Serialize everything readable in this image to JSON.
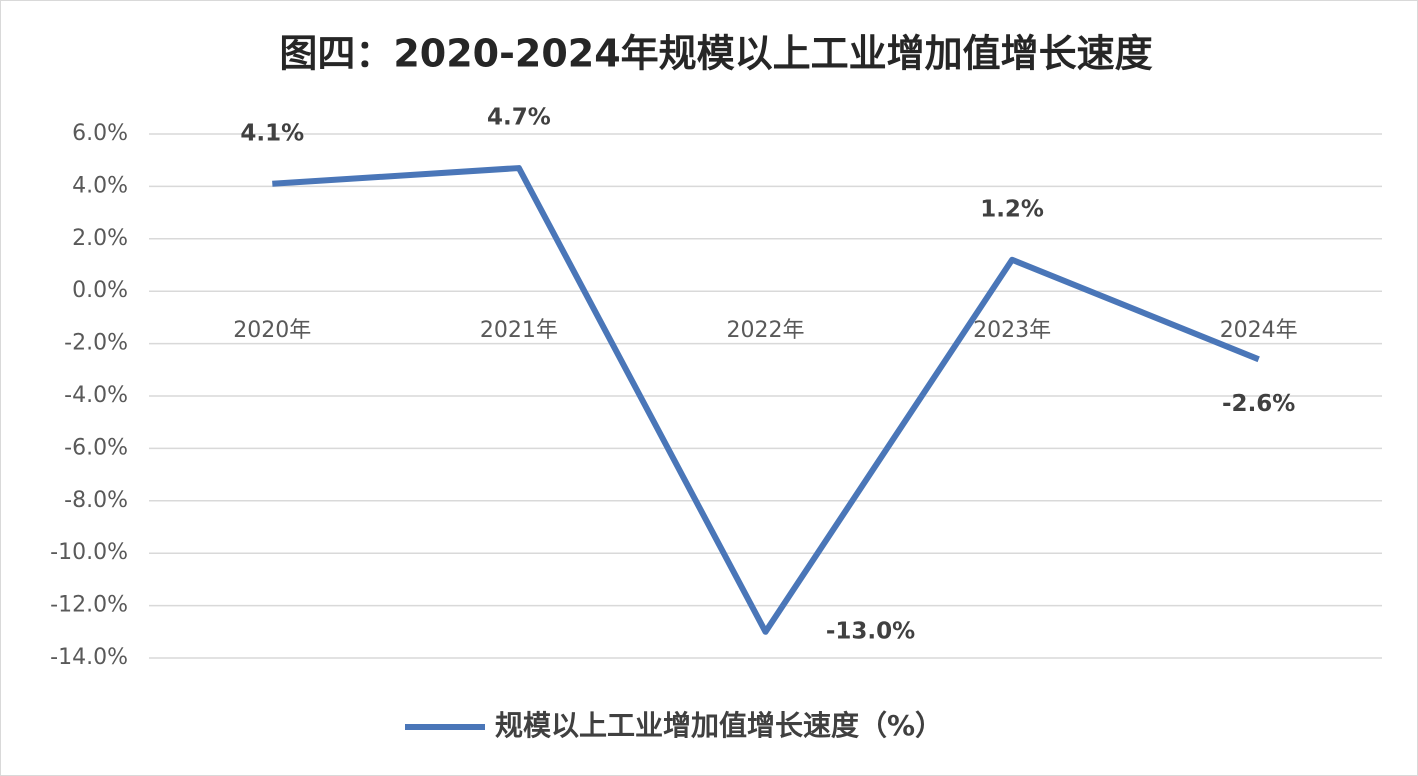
{
  "chart_data": {
    "type": "line",
    "title": "图四：2020-2024年规模以上工业增加值增长速度",
    "categories": [
      "2020年",
      "2021年",
      "2022年",
      "2023年",
      "2024年"
    ],
    "series": [
      {
        "name": "规模以上工业增加值增长速度（%）",
        "color": "#4a76b8",
        "values": [
          4.1,
          4.7,
          -13.0,
          1.2,
          -2.6
        ],
        "value_labels": [
          "4.1%",
          "4.7%",
          "-13.0%",
          "1.2%",
          "-2.6%"
        ]
      }
    ],
    "ylim": [
      -14,
      6
    ],
    "yticks": [
      {
        "value": -14,
        "label": "-14.0%"
      },
      {
        "value": -12,
        "label": "-12.0%"
      },
      {
        "value": -10,
        "label": "-10.0%"
      },
      {
        "value": -8,
        "label": "-8.0%"
      },
      {
        "value": -6,
        "label": "-6.0%"
      },
      {
        "value": -4,
        "label": "-4.0%"
      },
      {
        "value": -2,
        "label": "-2.0%"
      },
      {
        "value": 0,
        "label": "0.0%"
      },
      {
        "value": 2,
        "label": "2.0%"
      },
      {
        "value": 4,
        "label": "4.0%"
      },
      {
        "value": 6,
        "label": "6.0%"
      }
    ],
    "grid": true,
    "legend": "bottom"
  }
}
